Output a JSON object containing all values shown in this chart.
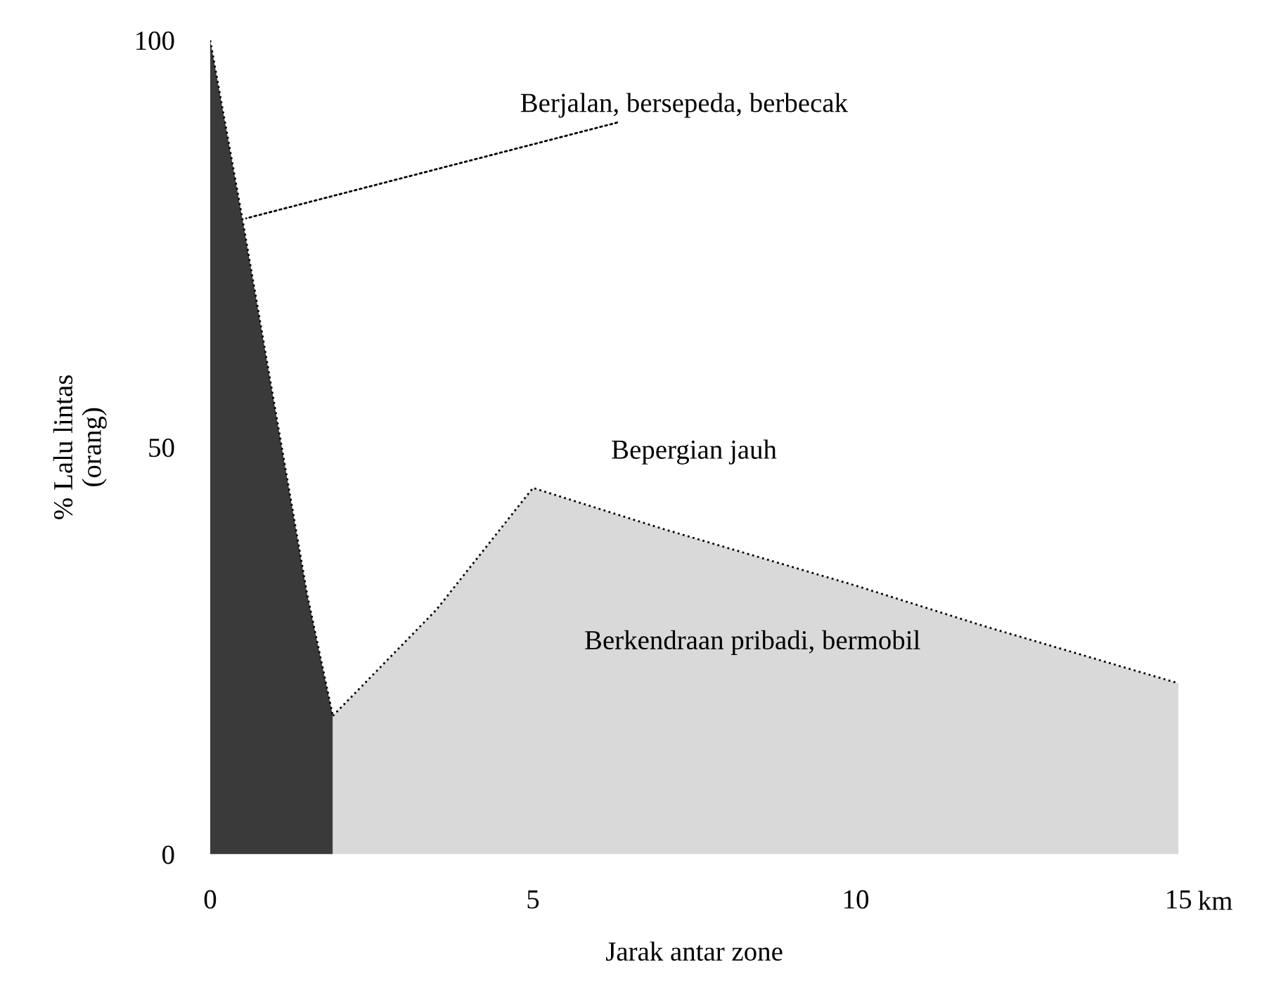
{
  "chart_data": {
    "type": "area",
    "xlabel": "Jarak antar zone",
    "ylabel": "% Lalu lintas\n(orang)",
    "xlim": [
      0,
      15
    ],
    "ylim": [
      0,
      100
    ],
    "xticks": [
      0,
      5,
      10,
      15
    ],
    "yticks": [
      0,
      50,
      100
    ],
    "grid": false,
    "legend": false,
    "series": [
      {
        "name": "Berjalan, bersepeda, berbecak",
        "color": "#3a3a3a",
        "x": [
          0,
          0.5,
          1,
          1.5,
          1.9
        ],
        "values": [
          100,
          78,
          55,
          32,
          17
        ]
      },
      {
        "name": "Bepergian jauh",
        "color": "#d9d9d9",
        "x": [
          1.9,
          3.5,
          5,
          7,
          10,
          12,
          15
        ],
        "values": [
          17,
          30,
          45,
          40,
          33,
          28,
          21
        ]
      }
    ],
    "annotations": [
      "Berkendraan pribadi, bermobil",
      "km"
    ]
  }
}
